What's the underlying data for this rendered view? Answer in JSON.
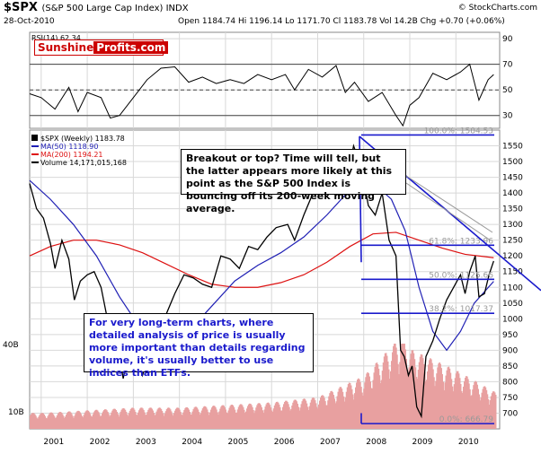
{
  "header": {
    "symbol": "$SPX",
    "name": "(S&P 500 Large Cap Index) INDX",
    "date": "28-Oct-2010",
    "quote": "Open 1184.74  Hi 1196.14  Lo 1171.70  Cl 1183.78  Vol 14.2B  Chg +0.70 (+0.06%)",
    "copyright": "© StockCharts.com",
    "logo_part1": "Sunshine",
    "logo_part2": "Profits.com"
  },
  "annotations": {
    "top_note": "Breakout or top? Time will tell, but the latter appears more likely at this point as the S&P 500 Index is bouncing off its 200-week moving average.",
    "bottom_note": "For very long-term charts, where detailed analysis of price is usually more important than details regarding volume, it's usually better to use indices than ETFs."
  },
  "colors": {
    "price": "#000000",
    "ma50": "#1f1fb4",
    "ma200": "#dd1111",
    "volume": "#e8a0a0",
    "fib": "#1a1acc",
    "rsi": "#000000",
    "grid": "#d8d8d8"
  },
  "chart_data": [
    {
      "type": "line",
      "title": "RSI(14) 62.34",
      "ylim": [
        20,
        95
      ],
      "y_ticks": [
        30,
        50,
        70,
        90
      ],
      "reference_lines": [
        30,
        50,
        70
      ],
      "series": [
        {
          "name": "RSI(14) 62.34",
          "x": [
            2000.75,
            2001.0,
            2001.3,
            2001.6,
            2001.8,
            2002.0,
            2002.3,
            2002.5,
            2002.7,
            2003.0,
            2003.3,
            2003.6,
            2003.9,
            2004.2,
            2004.5,
            2004.8,
            2005.1,
            2005.4,
            2005.7,
            2006.0,
            2006.3,
            2006.5,
            2006.8,
            2007.1,
            2007.4,
            2007.6,
            2007.8,
            2008.1,
            2008.4,
            2008.7,
            2008.85,
            2009.0,
            2009.2,
            2009.5,
            2009.8,
            2010.1,
            2010.3,
            2010.5,
            2010.7,
            2010.82
          ],
          "values": [
            47,
            44,
            35,
            52,
            33,
            48,
            44,
            28,
            30,
            44,
            58,
            67,
            68,
            56,
            60,
            55,
            58,
            55,
            62,
            58,
            62,
            50,
            66,
            60,
            69,
            48,
            56,
            41,
            48,
            30,
            22,
            38,
            44,
            63,
            58,
            64,
            70,
            42,
            58,
            62
          ]
        }
      ]
    },
    {
      "type": "line",
      "title": "$SPX (Weekly) 1183.78",
      "x_ticks": [
        "2001",
        "2002",
        "2003",
        "2004",
        "2005",
        "2006",
        "2007",
        "2008",
        "2009",
        "2010"
      ],
      "ylim": [
        650,
        1600
      ],
      "y_ticks": [
        700,
        750,
        800,
        850,
        900,
        950,
        1000,
        1050,
        1100,
        1150,
        1200,
        1250,
        1300,
        1350,
        1400,
        1450,
        1500,
        1550
      ],
      "volume_ticks": [
        "40B",
        "10B"
      ],
      "series": [
        {
          "name": "$SPX (Weekly) 1183.78",
          "x": [
            2000.75,
            2000.9,
            2001.05,
            2001.2,
            2001.3,
            2001.45,
            2001.6,
            2001.72,
            2001.85,
            2002.0,
            2002.15,
            2002.3,
            2002.45,
            2002.55,
            2002.65,
            2002.78,
            2002.9,
            2003.05,
            2003.2,
            2003.35,
            2003.5,
            2003.7,
            2003.9,
            2004.1,
            2004.3,
            2004.5,
            2004.7,
            2004.9,
            2005.1,
            2005.3,
            2005.5,
            2005.7,
            2005.9,
            2006.1,
            2006.35,
            2006.5,
            2006.7,
            2006.9,
            2007.1,
            2007.3,
            2007.5,
            2007.62,
            2007.78,
            2007.95,
            2008.1,
            2008.25,
            2008.4,
            2008.55,
            2008.7,
            2008.8,
            2008.88,
            2008.97,
            2009.05,
            2009.15,
            2009.25,
            2009.35,
            2009.5,
            2009.65,
            2009.8,
            2009.95,
            2010.1,
            2010.2,
            2010.3,
            2010.42,
            2010.5,
            2010.62,
            2010.72,
            2010.82
          ],
          "values": [
            1430,
            1350,
            1320,
            1240,
            1160,
            1250,
            1190,
            1060,
            1120,
            1140,
            1150,
            1100,
            990,
            900,
            930,
            810,
            900,
            880,
            820,
            900,
            990,
            1010,
            1080,
            1140,
            1130,
            1110,
            1100,
            1200,
            1190,
            1160,
            1230,
            1220,
            1260,
            1290,
            1300,
            1250,
            1330,
            1400,
            1420,
            1500,
            1530,
            1430,
            1550,
            1480,
            1360,
            1330,
            1400,
            1250,
            1200,
            900,
            880,
            820,
            850,
            720,
            690,
            880,
            930,
            1000,
            1060,
            1100,
            1140,
            1080,
            1150,
            1200,
            1070,
            1080,
            1140,
            1183.78
          ]
        },
        {
          "name": "MA(50) 1118.90",
          "x": [
            2000.75,
            2001.2,
            2001.7,
            2002.2,
            2002.7,
            2003.2,
            2003.7,
            2004.2,
            2004.7,
            2005.2,
            2005.7,
            2006.2,
            2006.7,
            2007.2,
            2007.7,
            2008.0,
            2008.3,
            2008.6,
            2008.9,
            2009.2,
            2009.5,
            2009.8,
            2010.1,
            2010.4,
            2010.82
          ],
          "values": [
            1440,
            1380,
            1300,
            1200,
            1070,
            960,
            930,
            960,
            1040,
            1120,
            1170,
            1210,
            1260,
            1330,
            1410,
            1440,
            1420,
            1380,
            1280,
            1100,
            960,
            900,
            960,
            1050,
            1118.9
          ]
        },
        {
          "name": "MA(200) 1194.21",
          "x": [
            2000.75,
            2001.2,
            2001.7,
            2002.2,
            2002.7,
            2003.2,
            2003.7,
            2004.2,
            2004.7,
            2005.2,
            2005.7,
            2006.2,
            2006.7,
            2007.2,
            2007.7,
            2008.2,
            2008.7,
            2009.2,
            2009.7,
            2010.2,
            2010.82
          ],
          "values": [
            1200,
            1230,
            1250,
            1250,
            1235,
            1210,
            1175,
            1140,
            1110,
            1100,
            1100,
            1115,
            1140,
            1180,
            1230,
            1270,
            1275,
            1250,
            1225,
            1205,
            1194.21
          ]
        },
        {
          "name": "Volume 14,171,015,168",
          "x": [
            2001.0,
            2002.0,
            2003.0,
            2004.0,
            2005.0,
            2006.0,
            2007.0,
            2008.0,
            2008.8,
            2009.0,
            2010.0,
            2010.82
          ],
          "values": [
            6,
            7,
            8,
            8,
            9,
            10,
            12,
            20,
            35,
            30,
            22,
            14
          ]
        }
      ],
      "fibonacci": [
        {
          "label": "100.0%: 1584.53",
          "value": 1584.53
        },
        {
          "label": "61.8%: 1233.96",
          "value": 1233.96
        },
        {
          "label": "50.0%: 1125.66",
          "value": 1125.66
        },
        {
          "label": "38.2%: 1017.37",
          "value": 1017.37
        },
        {
          "label": "0.0%: 666.79",
          "value": 666.79
        }
      ]
    }
  ]
}
